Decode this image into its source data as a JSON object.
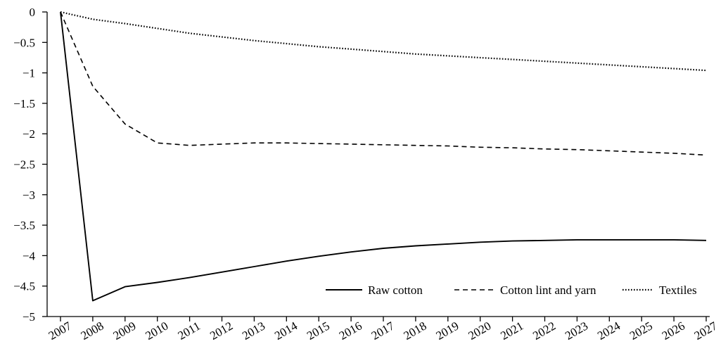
{
  "chart_data": {
    "type": "line",
    "title": "",
    "xlabel": "",
    "ylabel": "",
    "x": [
      "2007",
      "2008",
      "2009",
      "2010",
      "2011",
      "2012",
      "2013",
      "2014",
      "2015",
      "2016",
      "2017",
      "2018",
      "2019",
      "2020",
      "2021",
      "2022",
      "2023",
      "2024",
      "2025",
      "2026",
      "2027"
    ],
    "yticks": [
      "0",
      "−0.5",
      "−1",
      "−1.5",
      "−2",
      "−2.5",
      "−3",
      "−3.5",
      "−4",
      "−4.5",
      "−5"
    ],
    "ylim": [
      -5,
      0
    ],
    "grid": false,
    "legend_position": "bottom-right",
    "series": [
      {
        "name": "Raw cotton",
        "style": "solid",
        "values": [
          0,
          -4.74,
          -4.51,
          -4.44,
          -4.36,
          -4.27,
          -4.18,
          -4.09,
          -4.01,
          -3.94,
          -3.88,
          -3.84,
          -3.81,
          -3.78,
          -3.76,
          -3.75,
          -3.74,
          -3.74,
          -3.74,
          -3.74,
          -3.75
        ]
      },
      {
        "name": "Cotton lint and yarn",
        "style": "dashed",
        "values": [
          0,
          -1.22,
          -1.84,
          -2.15,
          -2.19,
          -2.17,
          -2.15,
          -2.15,
          -2.16,
          -2.17,
          -2.18,
          -2.19,
          -2.2,
          -2.22,
          -2.23,
          -2.25,
          -2.26,
          -2.28,
          -2.3,
          -2.32,
          -2.35
        ]
      },
      {
        "name": "Textiles",
        "style": "dotted",
        "values": [
          0,
          -0.12,
          -0.19,
          -0.27,
          -0.35,
          -0.41,
          -0.47,
          -0.52,
          -0.57,
          -0.61,
          -0.65,
          -0.69,
          -0.72,
          -0.75,
          -0.78,
          -0.81,
          -0.84,
          -0.87,
          -0.9,
          -0.93,
          -0.96
        ]
      }
    ]
  }
}
